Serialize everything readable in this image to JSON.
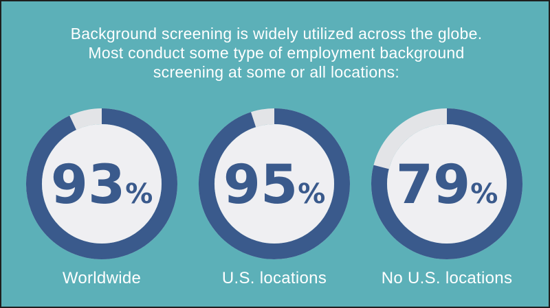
{
  "headline": {
    "line1": "Background screening is widely utilized across the globe.",
    "line2": "Most conduct some type of employment background",
    "line3": "screening at some or all locations:"
  },
  "colors": {
    "background": "#5cb0b8",
    "ring": "#3a5a8c",
    "remainder": "#e3e4e7",
    "inner": "#efeff2",
    "text": "#ffffff"
  },
  "chart_data": {
    "type": "pie",
    "unit": "%",
    "items": [
      {
        "label": "Worldwide",
        "value": 93
      },
      {
        "label": "U.S. locations",
        "value": 95
      },
      {
        "label": "No U.S. locations",
        "value": 79
      }
    ]
  }
}
